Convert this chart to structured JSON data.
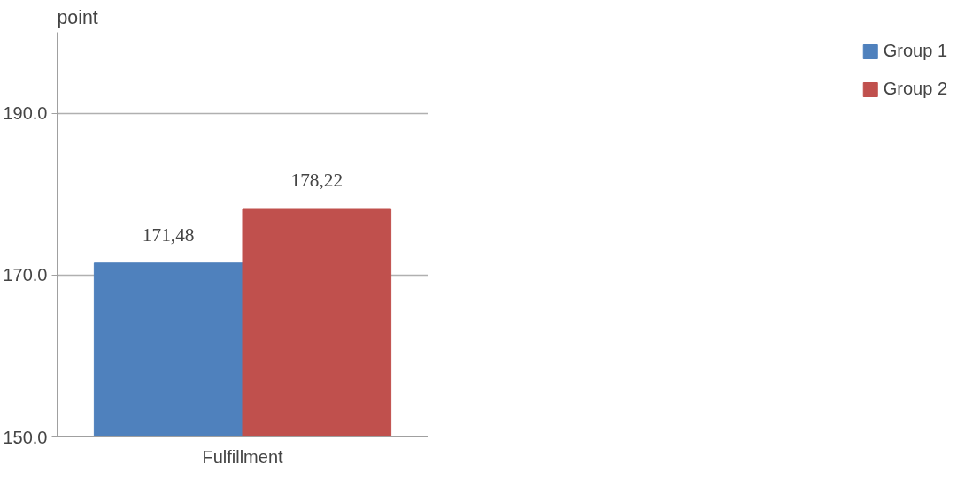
{
  "chart_data": {
    "type": "bar",
    "ylabel": "point",
    "categories": [
      "Fulfillment"
    ],
    "series": [
      {
        "name": "Group 1",
        "color": "#4f81bd",
        "values": [
          171.48
        ],
        "value_labels": [
          "171,48"
        ]
      },
      {
        "name": "Group 2",
        "color": "#c0504d",
        "values": [
          178.22
        ],
        "value_labels": [
          "178,22"
        ]
      }
    ],
    "ylim": [
      150,
      200
    ],
    "yticks": [
      {
        "value": 150,
        "label": "150.0"
      },
      {
        "value": 170,
        "label": "170.0"
      },
      {
        "value": 190,
        "label": "190.0"
      }
    ],
    "grid": "y",
    "legend": "right"
  }
}
